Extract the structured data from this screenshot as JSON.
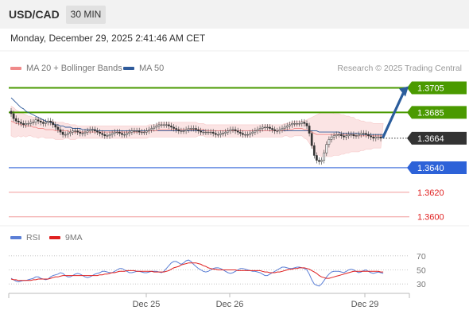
{
  "header": {
    "symbol": "USD/CAD",
    "timeframe": "30 MIN"
  },
  "datetime": "Monday, December 29, 2025 2:41:46 AM CET",
  "legend": {
    "ma20": {
      "label": "MA 20 + Bollinger Bands",
      "color": "#f08a8a"
    },
    "ma50": {
      "label": "MA 50",
      "color": "#2f5b9b"
    }
  },
  "credit": "Research © 2025 Trading Central",
  "rsi_legend": {
    "rsi": {
      "label": "RSI",
      "color": "#5b7fd6"
    },
    "ma9": {
      "label": "9MA",
      "color": "#e02020"
    }
  },
  "chart_data": {
    "type": "candlestick",
    "symbol": "USD/CAD",
    "timeframe": "30 MIN",
    "ylim": [
      1.3594,
      1.3717
    ],
    "current_price": {
      "value": 1.3664,
      "label": "1.3664",
      "color": "#333333"
    },
    "levels": [
      {
        "value": 1.3705,
        "label": "1.3705",
        "color": "#4a9a00",
        "kind": "resistance",
        "style": "thick"
      },
      {
        "value": 1.3685,
        "label": "1.3685",
        "color": "#4a9a00",
        "kind": "resistance",
        "style": "thick"
      },
      {
        "value": 1.364,
        "label": "1.3640",
        "color": "#2d62d8",
        "kind": "pivot",
        "style": "thin"
      },
      {
        "value": 1.362,
        "label": "1.3620",
        "color": "#e02020",
        "kind": "support",
        "style": "faint"
      },
      {
        "value": 1.36,
        "label": "1.3600",
        "color": "#e02020",
        "kind": "support",
        "style": "faint"
      }
    ],
    "target_arrow": {
      "from": 1.3665,
      "to": 1.3705,
      "color": "#2b5d9c"
    },
    "x_ticks": [
      "Dec 25",
      "Dec 26",
      "Dec 29"
    ],
    "closes": [
      1.3684,
      1.368,
      1.3678,
      1.3677,
      1.3676,
      1.3675,
      1.3676,
      1.3676,
      1.3677,
      1.3677,
      1.3679,
      1.3678,
      1.3677,
      1.3676,
      1.3677,
      1.3678,
      1.3677,
      1.3675,
      1.3673,
      1.3671,
      1.3669,
      1.3667,
      1.3667,
      1.3668,
      1.3669,
      1.367,
      1.367,
      1.3669,
      1.3668,
      1.3668,
      1.3669,
      1.367,
      1.3671,
      1.3671,
      1.367,
      1.3669,
      1.3668,
      1.3667,
      1.3666,
      1.3666,
      1.3667,
      1.3668,
      1.3669,
      1.3669,
      1.3668,
      1.3667,
      1.3667,
      1.3668,
      1.3669,
      1.367,
      1.367,
      1.367,
      1.3669,
      1.3669,
      1.3669,
      1.367,
      1.3671,
      1.3672,
      1.3673,
      1.3674,
      1.3675,
      1.3675,
      1.3675,
      1.3675,
      1.3674,
      1.3673,
      1.3672,
      1.3671,
      1.367,
      1.367,
      1.367,
      1.3671,
      1.3672,
      1.3672,
      1.3672,
      1.3671,
      1.367,
      1.3669,
      1.3669,
      1.3669,
      1.3669,
      1.3669,
      1.3668,
      1.3667,
      1.3667,
      1.3668,
      1.3668,
      1.3669,
      1.367,
      1.3671,
      1.3671,
      1.367,
      1.3669,
      1.3668,
      1.3667,
      1.3667,
      1.3667,
      1.3668,
      1.3669,
      1.367,
      1.3671,
      1.3672,
      1.3673,
      1.3673,
      1.3673,
      1.3672,
      1.3671,
      1.367,
      1.367,
      1.3671,
      1.3672,
      1.3673,
      1.3674,
      1.3675,
      1.3676,
      1.3676,
      1.3676,
      1.3676,
      1.3677,
      1.3676,
      1.3674,
      1.3668,
      1.3658,
      1.365,
      1.3646,
      1.3645,
      1.3646,
      1.3652,
      1.3659,
      1.3663,
      1.3665,
      1.3666,
      1.3667,
      1.3667,
      1.3666,
      1.3665,
      1.3666,
      1.3667,
      1.3667,
      1.3666,
      1.3666,
      1.3667,
      1.3668,
      1.3668,
      1.3667,
      1.3666,
      1.3665,
      1.3664,
      1.3665,
      1.3665,
      1.3664
    ],
    "ma20": [
      1.3678,
      1.3677,
      1.3676,
      1.3676,
      1.3675,
      1.3675,
      1.3674,
      1.3674,
      1.3674,
      1.3673,
      1.3673,
      1.3672,
      1.3672,
      1.3672,
      1.3671,
      1.3671,
      1.3671,
      1.3671,
      1.367,
      1.367,
      1.367,
      1.367,
      1.367,
      1.367,
      1.3669,
      1.3669,
      1.3669,
      1.3669,
      1.3669,
      1.3669,
      1.3669,
      1.3669,
      1.3669,
      1.3669,
      1.3669,
      1.3669,
      1.3669,
      1.3669,
      1.3669,
      1.3669,
      1.3669,
      1.3669,
      1.3669,
      1.3669,
      1.3669,
      1.3669,
      1.3669,
      1.3669,
      1.3669,
      1.3669,
      1.3669,
      1.3669,
      1.3669,
      1.3669,
      1.3669,
      1.3669,
      1.367,
      1.367,
      1.367,
      1.367,
      1.3671,
      1.3671,
      1.3671,
      1.3671,
      1.3671,
      1.3671,
      1.3671,
      1.3671,
      1.3671,
      1.3671,
      1.3671,
      1.3671,
      1.3671,
      1.3671,
      1.3671,
      1.3671,
      1.3671,
      1.3671,
      1.3671,
      1.367,
      1.367,
      1.367,
      1.367,
      1.367,
      1.367,
      1.367,
      1.367,
      1.367,
      1.367,
      1.367,
      1.367,
      1.367,
      1.367,
      1.367,
      1.367,
      1.367,
      1.367,
      1.367,
      1.367,
      1.367,
      1.367,
      1.367,
      1.367,
      1.367,
      1.367,
      1.367,
      1.367,
      1.367,
      1.367,
      1.367,
      1.367,
      1.3671,
      1.3671,
      1.3671,
      1.3671,
      1.3672,
      1.3672,
      1.3672,
      1.3672,
      1.3671,
      1.3671,
      1.367,
      1.3669,
      1.3668,
      1.3667,
      1.3667,
      1.3667,
      1.3667,
      1.3667,
      1.3667,
      1.3667,
      1.3667,
      1.3667,
      1.3667,
      1.3667,
      1.3667,
      1.3667,
      1.3667,
      1.3667,
      1.3667,
      1.3666,
      1.3666,
      1.3666,
      1.3666,
      1.3666,
      1.3666,
      1.3666,
      1.3666,
      1.3666,
      1.3666,
      1.3666,
      1.3666
    ],
    "ma50": [
      1.3697,
      1.3695,
      1.3693,
      1.3691,
      1.3689,
      1.3688,
      1.3686,
      1.3685,
      1.3684,
      1.3683,
      1.3682,
      1.3681,
      1.368,
      1.3679,
      1.3678,
      1.3677,
      1.3677,
      1.3676,
      1.3675,
      1.3675,
      1.3674,
      1.3674,
      1.3673,
      1.3673,
      1.3673,
      1.3672,
      1.3672,
      1.3672,
      1.3672,
      1.3671,
      1.3671,
      1.3671,
      1.3671,
      1.3671,
      1.3671,
      1.367,
      1.367,
      1.367,
      1.367,
      1.367,
      1.367,
      1.367,
      1.367,
      1.367,
      1.367,
      1.367,
      1.367,
      1.367,
      1.367,
      1.367,
      1.367,
      1.367,
      1.367,
      1.367,
      1.367,
      1.367,
      1.367,
      1.367,
      1.367,
      1.367,
      1.367,
      1.367,
      1.367,
      1.367,
      1.367,
      1.367,
      1.367,
      1.367,
      1.367,
      1.367,
      1.367,
      1.367,
      1.367,
      1.367,
      1.367,
      1.367,
      1.367,
      1.367,
      1.367,
      1.367,
      1.367,
      1.367,
      1.367,
      1.367,
      1.367,
      1.367,
      1.367,
      1.367,
      1.367,
      1.367,
      1.367,
      1.367,
      1.367,
      1.367,
      1.367,
      1.367,
      1.367,
      1.367,
      1.367,
      1.367,
      1.367,
      1.367,
      1.367,
      1.367,
      1.367,
      1.367,
      1.367,
      1.367,
      1.367,
      1.367,
      1.367,
      1.367,
      1.367,
      1.367,
      1.367,
      1.367,
      1.367,
      1.367,
      1.367,
      1.367,
      1.367,
      1.367,
      1.367,
      1.367,
      1.367,
      1.3669,
      1.3669,
      1.3669,
      1.3669,
      1.3669,
      1.3669,
      1.3669,
      1.3669,
      1.3669,
      1.3668,
      1.3668,
      1.3668,
      1.3668,
      1.3668,
      1.3668,
      1.3668,
      1.3668,
      1.3667,
      1.3667,
      1.3667,
      1.3667,
      1.3667,
      1.3667,
      1.3667,
      1.3667,
      1.3667,
      1.3667
    ],
    "bb_width": [
      0.0012,
      0.0012,
      0.0011,
      0.001,
      0.001,
      0.0009,
      0.0009,
      0.0008,
      0.0008,
      0.0008,
      0.0008,
      0.0008,
      0.0007,
      0.0007,
      0.0007,
      0.0007,
      0.0007,
      0.0007,
      0.0007,
      0.0007,
      0.0007,
      0.0007,
      0.0006,
      0.0006,
      0.0006,
      0.0006,
      0.0006,
      0.0005,
      0.0005,
      0.0005,
      0.0005,
      0.0005,
      0.0005,
      0.0005,
      0.0005,
      0.0005,
      0.0005,
      0.0005,
      0.0005,
      0.0005,
      0.0005,
      0.0005,
      0.0005,
      0.0005,
      0.0005,
      0.0005,
      0.0005,
      0.0005,
      0.0005,
      0.0005,
      0.0005,
      0.0005,
      0.0005,
      0.0005,
      0.0005,
      0.0005,
      0.0005,
      0.0005,
      0.0005,
      0.0005,
      0.0006,
      0.0006,
      0.0006,
      0.0006,
      0.0006,
      0.0006,
      0.0006,
      0.0006,
      0.0006,
      0.0006,
      0.0006,
      0.0006,
      0.0006,
      0.0006,
      0.0006,
      0.0006,
      0.0005,
      0.0005,
      0.0005,
      0.0005,
      0.0005,
      0.0005,
      0.0005,
      0.0005,
      0.0005,
      0.0005,
      0.0005,
      0.0005,
      0.0005,
      0.0005,
      0.0005,
      0.0005,
      0.0005,
      0.0005,
      0.0005,
      0.0005,
      0.0005,
      0.0005,
      0.0005,
      0.0005,
      0.0005,
      0.0005,
      0.0005,
      0.0005,
      0.0005,
      0.0005,
      0.0005,
      0.0005,
      0.0005,
      0.0005,
      0.0005,
      0.0005,
      0.0005,
      0.0006,
      0.0006,
      0.0006,
      0.0006,
      0.0006,
      0.0006,
      0.0007,
      0.0008,
      0.001,
      0.0012,
      0.0014,
      0.0016,
      0.0017,
      0.0018,
      0.0018,
      0.0018,
      0.0018,
      0.0018,
      0.0017,
      0.0017,
      0.0017,
      0.0016,
      0.0016,
      0.0015,
      0.0015,
      0.0014,
      0.0014,
      0.0013,
      0.0013,
      0.0012,
      0.0012,
      0.0011,
      0.0011,
      0.0011,
      0.001,
      0.001,
      0.001,
      0.001,
      0.001
    ],
    "rsi": {
      "ylim": [
        20,
        80
      ],
      "ticks": [
        70,
        50,
        30
      ],
      "rsi": [
        38,
        36,
        34,
        33,
        34,
        35,
        35,
        36,
        37,
        38,
        40,
        40,
        38,
        37,
        36,
        37,
        40,
        42,
        43,
        44,
        46,
        45,
        42,
        40,
        40,
        42,
        44,
        45,
        44,
        42,
        40,
        39,
        40,
        42,
        44,
        45,
        46,
        48,
        48,
        47,
        46,
        46,
        48,
        50,
        52,
        52,
        50,
        48,
        46,
        46,
        47,
        48,
        48,
        47,
        46,
        46,
        47,
        48,
        48,
        48,
        47,
        46,
        48,
        52,
        56,
        60,
        62,
        62,
        60,
        58,
        60,
        63,
        64,
        62,
        58,
        55,
        52,
        50,
        48,
        47,
        48,
        50,
        52,
        53,
        53,
        52,
        50,
        48,
        46,
        45,
        46,
        48,
        50,
        52,
        52,
        51,
        50,
        49,
        48,
        48,
        47,
        46,
        44,
        42,
        42,
        44,
        46,
        48,
        50,
        52,
        54,
        54,
        53,
        52,
        52,
        53,
        54,
        54,
        53,
        52,
        50,
        44,
        36,
        30,
        28,
        27,
        30,
        35,
        40,
        44,
        47,
        48,
        48,
        48,
        47,
        46,
        48,
        50,
        51,
        50,
        48,
        46,
        47,
        49,
        50,
        48,
        46,
        45,
        46,
        47,
        46,
        45
      ],
      "ma9": [
        37,
        36,
        36,
        35,
        35,
        35,
        35,
        35,
        35,
        36,
        36,
        37,
        37,
        37,
        37,
        37,
        38,
        39,
        40,
        40,
        41,
        42,
        42,
        42,
        42,
        42,
        42,
        42,
        42,
        42,
        42,
        42,
        42,
        42,
        42,
        42,
        43,
        43,
        44,
        44,
        45,
        46,
        46,
        47,
        48,
        48,
        48,
        49,
        49,
        49,
        49,
        48,
        48,
        48,
        48,
        48,
        48,
        48,
        47,
        47,
        47,
        47,
        47,
        48,
        49,
        51,
        53,
        54,
        55,
        57,
        58,
        59,
        60,
        60,
        60,
        60,
        59,
        58,
        56,
        55,
        53,
        52,
        51,
        51,
        50,
        50,
        50,
        50,
        50,
        50,
        50,
        50,
        49,
        49,
        49,
        49,
        49,
        49,
        49,
        49,
        49,
        49,
        48,
        47,
        47,
        46,
        46,
        46,
        47,
        47,
        48,
        49,
        50,
        51,
        51,
        52,
        52,
        53,
        53,
        53,
        52,
        51,
        49,
        47,
        45,
        42,
        40,
        39,
        38,
        38,
        39,
        40,
        41,
        42,
        43,
        44,
        45,
        46,
        47,
        48,
        48,
        48,
        48,
        48,
        48,
        48,
        48,
        48,
        48,
        48,
        47,
        47
      ]
    }
  }
}
